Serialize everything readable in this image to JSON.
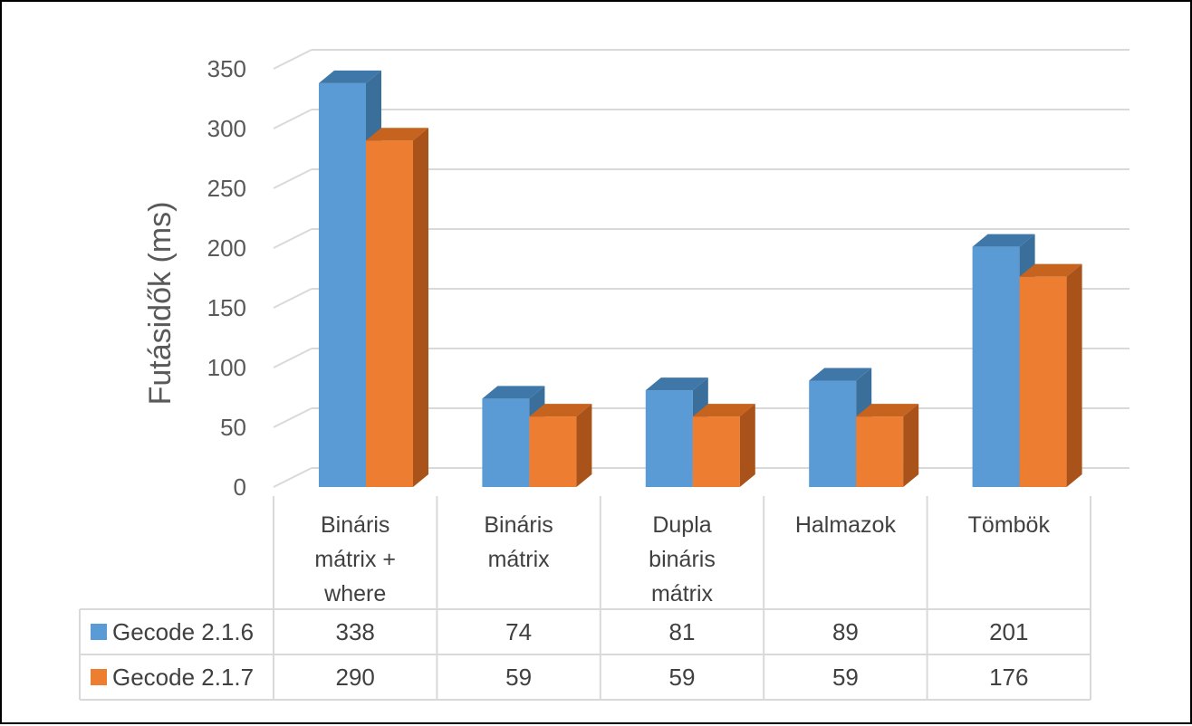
{
  "chart_data": {
    "type": "bar",
    "style": "3d-clustered-column-with-data-table",
    "categories": [
      [
        "Bináris",
        "mátrix +",
        "where"
      ],
      [
        "Bináris",
        "mátrix"
      ],
      [
        "Dupla",
        "bináris",
        "mátrix"
      ],
      [
        "Halmazok"
      ],
      [
        "Tömbök"
      ]
    ],
    "series": [
      {
        "name": "Gecode 2.1.6",
        "values": [
          338,
          74,
          81,
          89,
          201
        ],
        "color": "#5B9BD5",
        "top": "#3F77A8",
        "side": "#3A6F9C"
      },
      {
        "name": "Gecode 2.1.7",
        "values": [
          290,
          59,
          59,
          59,
          176
        ],
        "color": "#ED7D31",
        "top": "#C5631F",
        "side": "#A9531B"
      }
    ],
    "ylabel": "Futásidők (ms)",
    "xlabel": "",
    "ylim": [
      0,
      350
    ],
    "yticks": [
      0,
      50,
      100,
      150,
      200,
      250,
      300,
      350
    ],
    "grid": true,
    "legend": "data-table"
  }
}
